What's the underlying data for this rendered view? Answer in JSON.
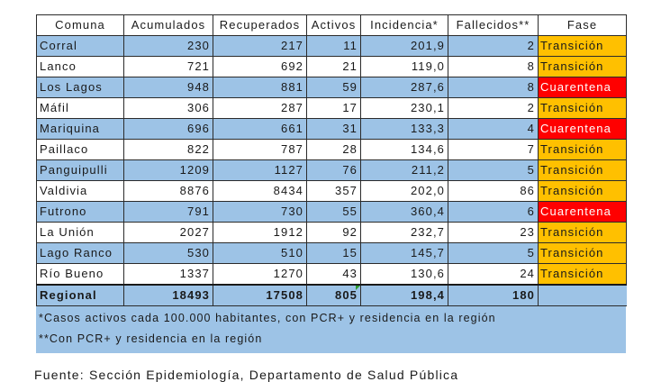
{
  "columns": [
    "Comuna",
    "Acumulados",
    "Recuperados",
    "Activos",
    "Incidencia*",
    "Fallecidos**",
    "Fase"
  ],
  "rows": [
    {
      "comuna": "Corral",
      "acumulados": "230",
      "recuperados": "217",
      "activos": "11",
      "incidencia": "201,9",
      "fallecidos": "2",
      "fase": "Transición",
      "fase_color": "#ffc000"
    },
    {
      "comuna": "Lanco",
      "acumulados": "721",
      "recuperados": "692",
      "activos": "21",
      "incidencia": "119,0",
      "fallecidos": "8",
      "fase": "Transición",
      "fase_color": "#ffc000"
    },
    {
      "comuna": "Los Lagos",
      "acumulados": "948",
      "recuperados": "881",
      "activos": "59",
      "incidencia": "287,6",
      "fallecidos": "8",
      "fase": "Cuarentena",
      "fase_color": "#ff0000"
    },
    {
      "comuna": "Máfil",
      "acumulados": "306",
      "recuperados": "287",
      "activos": "17",
      "incidencia": "230,1",
      "fallecidos": "2",
      "fase": "Transición",
      "fase_color": "#ffc000"
    },
    {
      "comuna": "Mariquina",
      "acumulados": "696",
      "recuperados": "661",
      "activos": "31",
      "incidencia": "133,3",
      "fallecidos": "4",
      "fase": "Cuarentena",
      "fase_color": "#ff0000"
    },
    {
      "comuna": "Paillaco",
      "acumulados": "822",
      "recuperados": "787",
      "activos": "28",
      "incidencia": "134,6",
      "fallecidos": "7",
      "fase": "Transición",
      "fase_color": "#ffc000"
    },
    {
      "comuna": "Panguipulli",
      "acumulados": "1209",
      "recuperados": "1127",
      "activos": "76",
      "incidencia": "211,2",
      "fallecidos": "5",
      "fase": "Transición",
      "fase_color": "#ffc000"
    },
    {
      "comuna": "Valdivia",
      "acumulados": "8876",
      "recuperados": "8434",
      "activos": "357",
      "incidencia": "202,0",
      "fallecidos": "86",
      "fase": "Transición",
      "fase_color": "#ffc000"
    },
    {
      "comuna": "Futrono",
      "acumulados": "791",
      "recuperados": "730",
      "activos": "55",
      "incidencia": "360,4",
      "fallecidos": "6",
      "fase": "Cuarentena",
      "fase_color": "#ff0000"
    },
    {
      "comuna": "La Unión",
      "acumulados": "2027",
      "recuperados": "1912",
      "activos": "92",
      "incidencia": "232,7",
      "fallecidos": "23",
      "fase": "Transición",
      "fase_color": "#ffc000"
    },
    {
      "comuna": "Lago Ranco",
      "acumulados": "530",
      "recuperados": "510",
      "activos": "15",
      "incidencia": "145,7",
      "fallecidos": "5",
      "fase": "Transición",
      "fase_color": "#ffc000"
    },
    {
      "comuna": "Río Bueno",
      "acumulados": "1337",
      "recuperados": "1270",
      "activos": "43",
      "incidencia": "130,6",
      "fallecidos": "24",
      "fase": "Transición",
      "fase_color": "#ffc000"
    }
  ],
  "total": {
    "comuna": "Regional",
    "acumulados": "18493",
    "recuperados": "17508",
    "activos": "805",
    "incidencia": "198,4",
    "fallecidos": "180"
  },
  "notes": [
    "*Casos activos cada 100.000 habitantes, con PCR+ y residencia en la región",
    "**Con PCR+ y residencia en la región"
  ],
  "source": "Fuente: Sección Epidemiología, Departamento de Salud Pública",
  "colors": {
    "row_blue": "#9dc3e6",
    "transicion": "#ffc000",
    "cuarentena": "#ff0000"
  }
}
